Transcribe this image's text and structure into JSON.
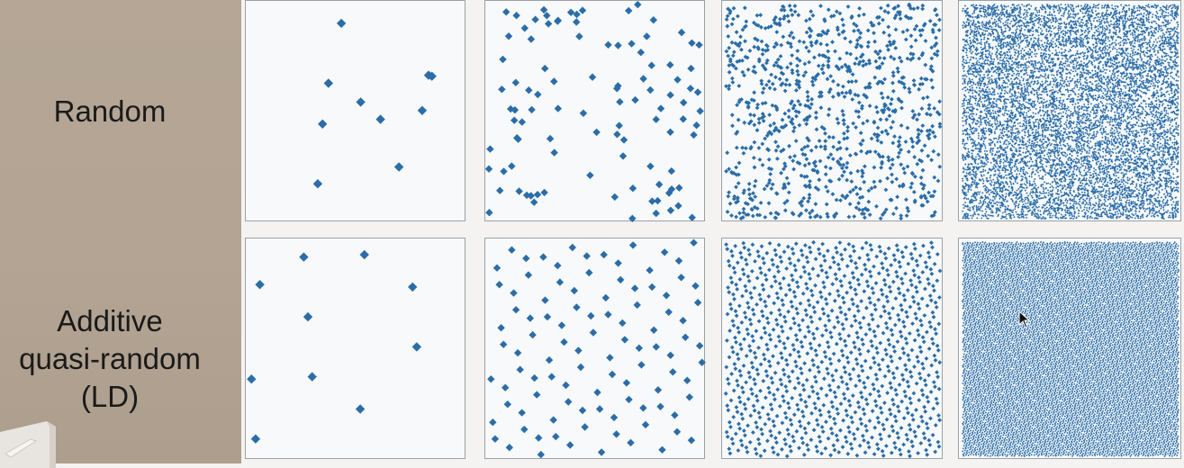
{
  "rows": [
    {
      "id": "random",
      "label_lines": [
        "Random"
      ],
      "kind": "random"
    },
    {
      "id": "ld",
      "label_lines": [
        "Additive",
        "quasi-random",
        "(LD)"
      ],
      "kind": "ld"
    }
  ],
  "columns": [
    {
      "point_count": 10
    },
    {
      "point_count": 100
    },
    {
      "point_count": 1000
    },
    {
      "point_count": 10000
    }
  ],
  "colors": {
    "point": "#2b6da8",
    "panel_bg": "#f7f9fa",
    "panel_border": "#9aa1a6",
    "sidebar_bg": "#b3a493"
  },
  "icons": {
    "marker": "diamond-point-icon",
    "cursor": "cursor-arrow-icon"
  }
}
